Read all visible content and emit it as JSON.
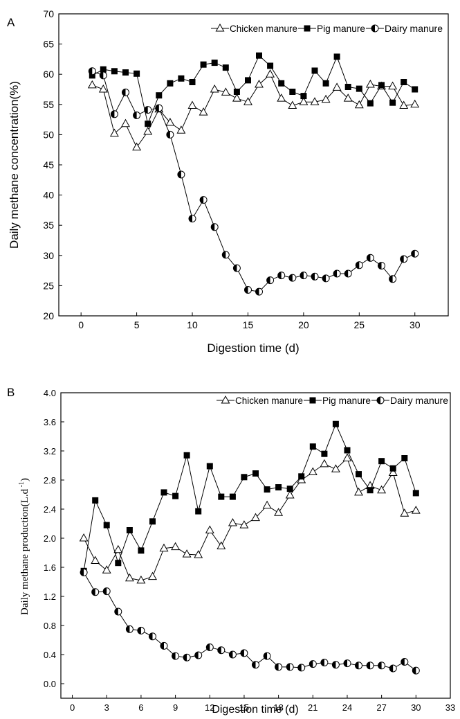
{
  "panels": [
    {
      "panel_label": "A",
      "xlabel": "Digestion time (d)",
      "ylabel": "Daily methane concentration(%)",
      "legend_position": "top-right"
    },
    {
      "panel_label": "B",
      "xlabel": "Digestion time (d)",
      "ylabel_main": "Daily methane production(L.d",
      "ylabel_sup": " -1",
      "ylabel_close": ")",
      "legend_position": "top-right"
    }
  ],
  "chart_data": [
    {
      "type": "line",
      "panel": "A",
      "xlabel": "Digestion time (d)",
      "ylabel": "Daily methane concentration(%)",
      "xlim": [
        -2,
        33
      ],
      "ylim": [
        20,
        70
      ],
      "xticks": [
        0,
        5,
        10,
        15,
        20,
        25,
        30
      ],
      "yticks": [
        20,
        25,
        30,
        35,
        40,
        45,
        50,
        55,
        60,
        65,
        70
      ],
      "grid": false,
      "legend": "top-right",
      "x": [
        1,
        2,
        3,
        4,
        5,
        6,
        7,
        8,
        9,
        10,
        11,
        12,
        13,
        14,
        15,
        16,
        17,
        18,
        19,
        20,
        21,
        22,
        23,
        24,
        25,
        26,
        27,
        28,
        29,
        30
      ],
      "series": [
        {
          "name": "Chicken manure",
          "marker": "open-triangle",
          "values": [
            58.2,
            57.5,
            50.2,
            51.8,
            47.9,
            50.5,
            54.2,
            52.0,
            50.7,
            54.8,
            53.7,
            57.5,
            57.0,
            56.0,
            55.4,
            58.3,
            60.0,
            56.0,
            54.8,
            55.4,
            55.4,
            55.8,
            57.8,
            56.0,
            54.9,
            58.3,
            58.0,
            58.0,
            54.8,
            55.0
          ]
        },
        {
          "name": "Pig manure",
          "marker": "filled-square",
          "values": [
            59.8,
            60.8,
            60.5,
            60.3,
            60.1,
            51.8,
            56.5,
            58.5,
            59.3,
            58.7,
            61.6,
            61.9,
            61.1,
            57.1,
            59.0,
            63.1,
            61.4,
            58.5,
            57.1,
            56.4,
            60.6,
            58.5,
            62.9,
            57.9,
            57.6,
            55.2,
            58.2,
            55.3,
            58.7,
            57.5
          ]
        },
        {
          "name": "Dairy manure",
          "marker": "half-filled-circle",
          "values": [
            60.5,
            59.8,
            53.4,
            57.0,
            53.2,
            54.1,
            54.4,
            50.0,
            43.4,
            36.1,
            39.2,
            34.7,
            30.1,
            27.9,
            24.3,
            24.0,
            25.9,
            26.7,
            26.3,
            26.7,
            26.5,
            26.2,
            27.0,
            27.0,
            28.4,
            29.6,
            28.3,
            26.1,
            29.4,
            30.3
          ]
        }
      ]
    },
    {
      "type": "line",
      "panel": "B",
      "xlabel": "Digestion time (d)",
      "ylabel": "Daily methane production(L.d -1)",
      "xlim": [
        -1,
        33
      ],
      "ylim": [
        -0.2,
        4.0
      ],
      "xticks": [
        0,
        3,
        6,
        9,
        12,
        15,
        18,
        21,
        24,
        27,
        30,
        33
      ],
      "yticks": [
        0.0,
        0.4,
        0.8,
        1.2,
        1.6,
        2.0,
        2.4,
        2.8,
        3.2,
        3.6,
        4.0
      ],
      "grid": false,
      "legend": "top-right",
      "x": [
        1,
        2,
        3,
        4,
        5,
        6,
        7,
        8,
        9,
        10,
        11,
        12,
        13,
        14,
        15,
        16,
        17,
        18,
        19,
        20,
        21,
        22,
        23,
        24,
        25,
        26,
        27,
        28,
        29,
        30
      ],
      "series": [
        {
          "name": "Chicken manure",
          "marker": "open-triangle",
          "values": [
            2.0,
            1.69,
            1.56,
            1.84,
            1.45,
            1.42,
            1.47,
            1.86,
            1.88,
            1.78,
            1.77,
            2.11,
            1.89,
            2.21,
            2.18,
            2.28,
            2.45,
            2.35,
            2.59,
            2.8,
            2.91,
            3.02,
            2.95,
            3.1,
            2.63,
            2.72,
            2.66,
            2.9,
            2.34,
            2.38
          ]
        },
        {
          "name": "Pig manure",
          "marker": "filled-square",
          "values": [
            1.55,
            2.52,
            2.18,
            1.66,
            2.11,
            1.83,
            2.23,
            2.63,
            2.58,
            3.14,
            2.37,
            2.99,
            2.57,
            2.57,
            2.84,
            2.89,
            2.67,
            2.7,
            2.68,
            2.85,
            3.26,
            3.16,
            3.57,
            3.21,
            2.88,
            2.66,
            3.06,
            2.96,
            3.1,
            2.62
          ]
        },
        {
          "name": "Dairy manure",
          "marker": "half-filled-circle",
          "values": [
            1.53,
            1.26,
            1.27,
            0.99,
            0.75,
            0.73,
            0.65,
            0.52,
            0.38,
            0.36,
            0.39,
            0.5,
            0.46,
            0.4,
            0.42,
            0.26,
            0.38,
            0.23,
            0.23,
            0.22,
            0.27,
            0.29,
            0.26,
            0.28,
            0.25,
            0.25,
            0.25,
            0.21,
            0.3,
            0.18
          ]
        }
      ]
    }
  ]
}
